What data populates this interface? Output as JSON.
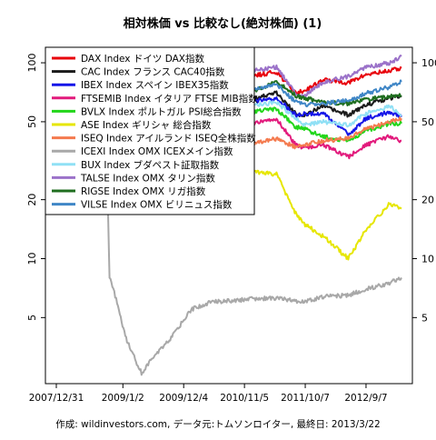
{
  "chart_data": {
    "type": "line",
    "title": "相対株価 vs 比較なし(絶対株価) (1)",
    "footer": "作成: wildinvestors.com, データ元:トムソンロイター, 最終日: 2013/3/22",
    "y_scale": "log",
    "ylim": [
      2.3,
      120
    ],
    "y_ticks": [
      5,
      10,
      20,
      50,
      100
    ],
    "x_range": [
      "2007-12-31",
      "2013-03-22"
    ],
    "x_tick_labels": [
      "2007/12/31",
      "2009/1/2",
      "2009/12/4",
      "2010/11/5",
      "2011/10/7",
      "2012/9/7"
    ],
    "x_tick_dates": [
      "2007-12-31",
      "2009-01-02",
      "2009-12-04",
      "2010-11-05",
      "2011-10-07",
      "2012-09-07"
    ],
    "grid": false,
    "legend_position": "top-left",
    "series": [
      {
        "name": "DAX Index ドイツ DAX指数",
        "color": "#e8000b",
        "points": [
          [
            "2007-12-31",
            100
          ],
          [
            "2008-03-15",
            82
          ],
          [
            "2008-07-01",
            77
          ],
          [
            "2008-10-20",
            56
          ],
          [
            "2009-03-06",
            48
          ],
          [
            "2009-06-01",
            62
          ],
          [
            "2009-10-01",
            71
          ],
          [
            "2010-05-01",
            75
          ],
          [
            "2010-12-01",
            85
          ],
          [
            "2011-05-01",
            90
          ],
          [
            "2011-08-15",
            70
          ],
          [
            "2011-10-01",
            72
          ],
          [
            "2012-01-15",
            82
          ],
          [
            "2012-06-01",
            79
          ],
          [
            "2012-09-07",
            87
          ],
          [
            "2013-01-15",
            91
          ],
          [
            "2013-03-22",
            94
          ]
        ]
      },
      {
        "name": "CAC Index フランス CAC40指数",
        "color": "#1a1a1a",
        "points": [
          [
            "2007-12-31",
            100
          ],
          [
            "2008-03-15",
            80
          ],
          [
            "2008-07-01",
            75
          ],
          [
            "2008-10-20",
            56
          ],
          [
            "2009-03-06",
            48
          ],
          [
            "2009-06-01",
            58
          ],
          [
            "2009-10-01",
            66
          ],
          [
            "2010-05-01",
            61
          ],
          [
            "2010-12-01",
            65
          ],
          [
            "2011-05-01",
            70
          ],
          [
            "2011-08-15",
            55
          ],
          [
            "2011-10-01",
            54
          ],
          [
            "2012-01-15",
            60
          ],
          [
            "2012-06-01",
            54
          ],
          [
            "2012-09-07",
            61
          ],
          [
            "2013-01-15",
            66
          ],
          [
            "2013-03-22",
            68
          ]
        ]
      },
      {
        "name": "IBEX Index スペイン IBEX35指数",
        "color": "#1515e8",
        "points": [
          [
            "2007-12-31",
            100
          ],
          [
            "2008-03-15",
            85
          ],
          [
            "2008-07-01",
            79
          ],
          [
            "2008-10-20",
            60
          ],
          [
            "2009-03-06",
            52
          ],
          [
            "2009-06-01",
            64
          ],
          [
            "2009-10-01",
            76
          ],
          [
            "2010-05-01",
            64
          ],
          [
            "2010-12-01",
            63
          ],
          [
            "2011-05-01",
            66
          ],
          [
            "2011-08-15",
            54
          ],
          [
            "2011-10-01",
            55
          ],
          [
            "2012-01-15",
            55
          ],
          [
            "2012-06-01",
            43
          ],
          [
            "2012-09-07",
            52
          ],
          [
            "2013-01-15",
            56
          ],
          [
            "2013-03-22",
            53
          ]
        ]
      },
      {
        "name": "FTSEMIB Index イタリア FTSE MIB指数",
        "color": "#e21a7c",
        "points": [
          [
            "2007-12-31",
            100
          ],
          [
            "2008-03-15",
            80
          ],
          [
            "2008-07-01",
            72
          ],
          [
            "2008-10-20",
            52
          ],
          [
            "2009-03-06",
            39
          ],
          [
            "2009-06-01",
            52
          ],
          [
            "2009-10-01",
            60
          ],
          [
            "2010-05-01",
            50
          ],
          [
            "2010-12-01",
            48
          ],
          [
            "2011-05-01",
            52
          ],
          [
            "2011-08-15",
            38
          ],
          [
            "2011-10-01",
            37
          ],
          [
            "2012-01-15",
            38
          ],
          [
            "2012-06-01",
            33
          ],
          [
            "2012-09-07",
            38
          ],
          [
            "2013-01-15",
            42
          ],
          [
            "2013-03-22",
            40
          ]
        ]
      },
      {
        "name": "BVLX Index ポルトガル PSI総合指数",
        "color": "#22d61a",
        "points": [
          [
            "2007-12-31",
            100
          ],
          [
            "2008-03-15",
            80
          ],
          [
            "2008-07-01",
            69
          ],
          [
            "2008-10-20",
            53
          ],
          [
            "2009-03-06",
            48
          ],
          [
            "2009-06-01",
            58
          ],
          [
            "2009-10-01",
            64
          ],
          [
            "2010-05-01",
            57
          ],
          [
            "2010-12-01",
            56
          ],
          [
            "2011-05-01",
            58
          ],
          [
            "2011-08-15",
            47
          ],
          [
            "2011-10-01",
            46
          ],
          [
            "2012-01-15",
            42
          ],
          [
            "2012-06-01",
            40
          ],
          [
            "2012-09-07",
            45
          ],
          [
            "2013-01-15",
            49
          ],
          [
            "2013-03-22",
            49
          ]
        ]
      },
      {
        "name": "ASE Index ギリシャ 総合指数",
        "color": "#e6e600",
        "points": [
          [
            "2007-12-31",
            100
          ],
          [
            "2008-03-15",
            78
          ],
          [
            "2008-07-01",
            65
          ],
          [
            "2008-10-20",
            40
          ],
          [
            "2009-03-06",
            30
          ],
          [
            "2009-06-01",
            39
          ],
          [
            "2009-10-01",
            44
          ],
          [
            "2010-05-01",
            32
          ],
          [
            "2010-12-01",
            28
          ],
          [
            "2011-05-01",
            27
          ],
          [
            "2011-08-15",
            17
          ],
          [
            "2011-10-01",
            15
          ],
          [
            "2012-01-15",
            13
          ],
          [
            "2012-06-01",
            10
          ],
          [
            "2012-09-07",
            14
          ],
          [
            "2013-01-15",
            19
          ],
          [
            "2013-03-22",
            18
          ]
        ]
      },
      {
        "name": "ISEQ Index アイルランド ISEQ全株指数",
        "color": "#f47a4e",
        "points": [
          [
            "2007-12-31",
            100
          ],
          [
            "2008-03-15",
            72
          ],
          [
            "2008-07-01",
            58
          ],
          [
            "2008-10-20",
            38
          ],
          [
            "2009-03-06",
            28
          ],
          [
            "2009-06-01",
            37
          ],
          [
            "2009-10-01",
            44
          ],
          [
            "2010-05-01",
            42
          ],
          [
            "2010-12-01",
            38
          ],
          [
            "2011-05-01",
            41
          ],
          [
            "2011-08-15",
            37
          ],
          [
            "2011-10-01",
            38
          ],
          [
            "2012-01-15",
            40
          ],
          [
            "2012-06-01",
            41
          ],
          [
            "2012-09-07",
            46
          ],
          [
            "2013-01-15",
            50
          ],
          [
            "2013-03-22",
            52
          ]
        ]
      },
      {
        "name": "ICEXI Index OMX ICEXメイン指数",
        "color": "#a8a8a8",
        "points": [
          [
            "2007-12-31",
            100
          ],
          [
            "2008-03-15",
            85
          ],
          [
            "2008-07-01",
            72
          ],
          [
            "2008-09-25",
            55
          ],
          [
            "2008-10-06",
            30
          ],
          [
            "2008-10-20",
            8
          ],
          [
            "2008-12-01",
            6
          ],
          [
            "2009-01-15",
            4
          ],
          [
            "2009-03-15",
            3
          ],
          [
            "2009-04-15",
            2.6
          ],
          [
            "2009-06-01",
            3
          ],
          [
            "2009-10-01",
            4
          ],
          [
            "2010-01-15",
            5.5
          ],
          [
            "2010-05-01",
            6
          ],
          [
            "2010-12-01",
            6.2
          ],
          [
            "2011-05-01",
            6.3
          ],
          [
            "2011-10-01",
            6
          ],
          [
            "2012-01-15",
            6.4
          ],
          [
            "2012-06-01",
            6.5
          ],
          [
            "2012-09-07",
            7
          ],
          [
            "2013-01-15",
            7.5
          ],
          [
            "2013-03-22",
            8
          ]
        ]
      },
      {
        "name": "BUX Index ブダペスト証取指数",
        "color": "#90e0f5",
        "points": [
          [
            "2007-12-31",
            100
          ],
          [
            "2008-03-15",
            80
          ],
          [
            "2008-07-01",
            72
          ],
          [
            "2008-10-20",
            44
          ],
          [
            "2009-03-06",
            33
          ],
          [
            "2009-06-01",
            47
          ],
          [
            "2009-10-01",
            61
          ],
          [
            "2010-05-01",
            65
          ],
          [
            "2010-12-01",
            60
          ],
          [
            "2011-05-01",
            63
          ],
          [
            "2011-08-15",
            52
          ],
          [
            "2011-10-01",
            48
          ],
          [
            "2012-01-15",
            50
          ],
          [
            "2012-06-01",
            48
          ],
          [
            "2012-09-07",
            55
          ],
          [
            "2013-01-15",
            60
          ],
          [
            "2013-03-22",
            54
          ]
        ]
      },
      {
        "name": "TALSE Index OMX タリン指数",
        "color": "#9b72c9",
        "points": [
          [
            "2007-12-31",
            100
          ],
          [
            "2008-03-15",
            72
          ],
          [
            "2008-07-01",
            58
          ],
          [
            "2008-10-20",
            38
          ],
          [
            "2009-03-06",
            25
          ],
          [
            "2009-06-01",
            36
          ],
          [
            "2009-10-01",
            50
          ],
          [
            "2010-05-01",
            70
          ],
          [
            "2010-12-01",
            90
          ],
          [
            "2011-05-01",
            95
          ],
          [
            "2011-08-15",
            70
          ],
          [
            "2011-10-01",
            68
          ],
          [
            "2012-01-15",
            80
          ],
          [
            "2012-06-01",
            85
          ],
          [
            "2012-09-07",
            95
          ],
          [
            "2013-01-15",
            100
          ],
          [
            "2013-03-22",
            108
          ]
        ]
      },
      {
        "name": "RIGSE Index OMX リガ指数",
        "color": "#1f6e1f",
        "points": [
          [
            "2007-12-31",
            100
          ],
          [
            "2008-03-15",
            80
          ],
          [
            "2008-07-01",
            66
          ],
          [
            "2008-10-20",
            48
          ],
          [
            "2009-03-06",
            32
          ],
          [
            "2009-06-01",
            40
          ],
          [
            "2009-10-01",
            52
          ],
          [
            "2010-05-01",
            64
          ],
          [
            "2010-12-01",
            70
          ],
          [
            "2011-05-01",
            80
          ],
          [
            "2011-08-15",
            68
          ],
          [
            "2011-10-01",
            66
          ],
          [
            "2012-01-15",
            63
          ],
          [
            "2012-06-01",
            62
          ],
          [
            "2012-09-07",
            65
          ],
          [
            "2013-01-15",
            67
          ],
          [
            "2013-03-22",
            68
          ]
        ]
      },
      {
        "name": "VILSE Index OMX ビリニュス指数",
        "color": "#3f86c6",
        "points": [
          [
            "2007-12-31",
            100
          ],
          [
            "2008-03-15",
            75
          ],
          [
            "2008-07-01",
            60
          ],
          [
            "2008-10-20",
            40
          ],
          [
            "2009-03-06",
            26
          ],
          [
            "2009-06-01",
            38
          ],
          [
            "2009-10-01",
            52
          ],
          [
            "2010-05-01",
            62
          ],
          [
            "2010-12-01",
            72
          ],
          [
            "2011-05-01",
            78
          ],
          [
            "2011-08-15",
            63
          ],
          [
            "2011-10-01",
            61
          ],
          [
            "2012-01-15",
            62
          ],
          [
            "2012-06-01",
            64
          ],
          [
            "2012-09-07",
            70
          ],
          [
            "2013-01-15",
            75
          ],
          [
            "2013-03-22",
            80
          ]
        ]
      }
    ]
  }
}
